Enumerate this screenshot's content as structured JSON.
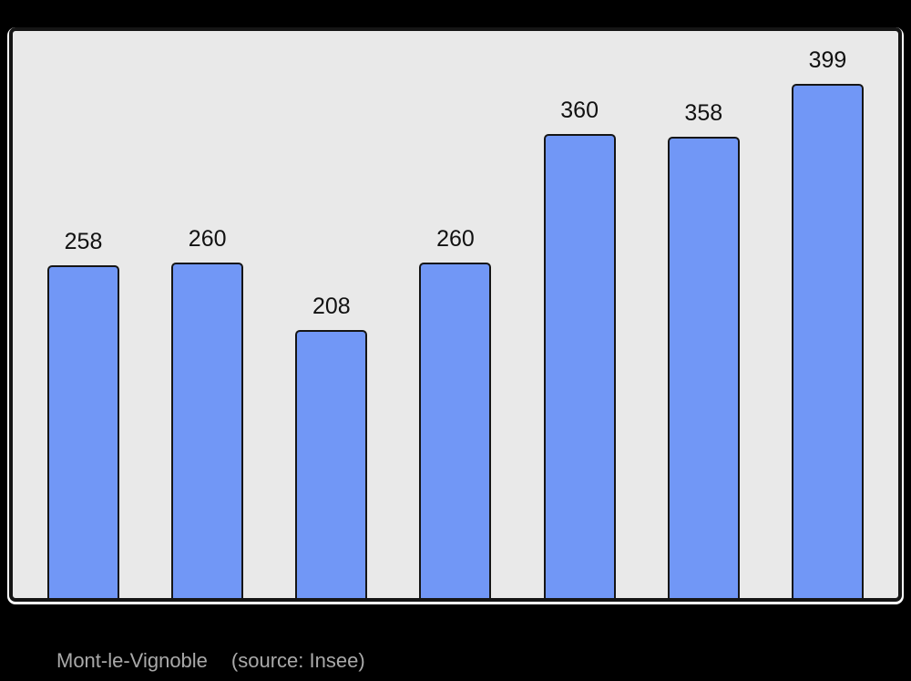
{
  "chart_data": {
    "type": "bar",
    "values": [
      258,
      260,
      208,
      260,
      360,
      358,
      399
    ],
    "value_labels": [
      "258",
      "260",
      "208",
      "260",
      "360",
      "358",
      "399"
    ],
    "title": "Mont-le-Vignoble",
    "source": "(source: Insee)",
    "xlabel": "",
    "ylabel": "",
    "ylim": [
      0,
      440
    ],
    "grid": false,
    "legend_position": "none",
    "bar_value_labels_shown": true,
    "colors": {
      "background": "#000000",
      "plot_background": "#e9e9e9",
      "bar_fill": "#7197f6",
      "bar_border": "#151515",
      "frame_border": "#151515",
      "frame_highlight": "#ffffff",
      "label_text": "#111111",
      "caption_text": "#a9a9a9"
    }
  }
}
